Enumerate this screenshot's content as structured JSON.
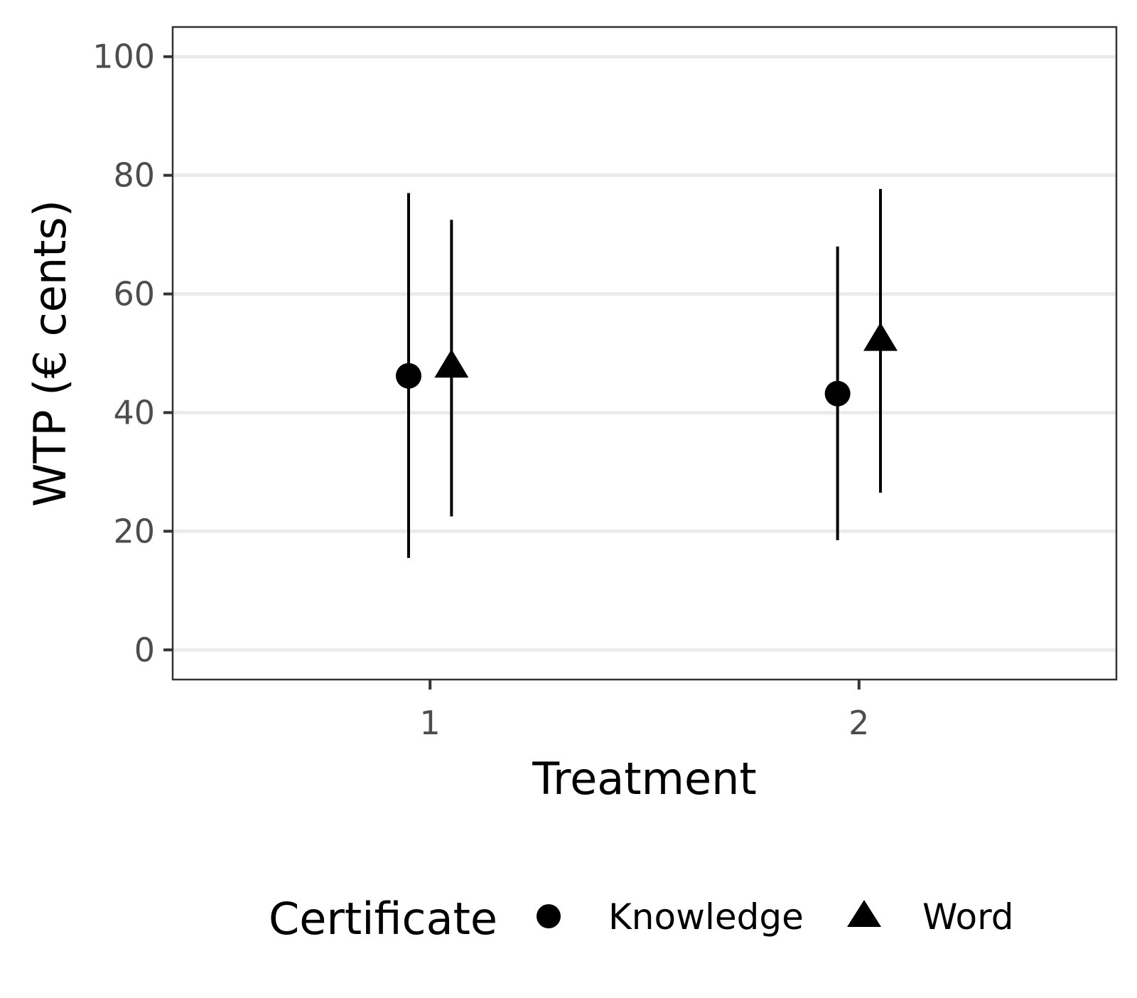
{
  "chart_data": {
    "type": "scatter",
    "title": "",
    "xlabel": "Treatment",
    "ylabel": "WTP (€ cents)",
    "categories": [
      "1",
      "2"
    ],
    "xlim": [
      0.4,
      2.6
    ],
    "ylim": [
      -5,
      105
    ],
    "yticks": [
      0,
      20,
      40,
      60,
      80,
      100
    ],
    "y_tick_labels": [
      "0",
      "20",
      "40",
      "60",
      "80",
      "100"
    ],
    "grid": "horizontal major lines only",
    "legend": {
      "title": "Certificate",
      "placement": "bottom",
      "entries": [
        {
          "label": "Knowledge",
          "shape": "circle"
        },
        {
          "label": "Word",
          "shape": "triangle"
        }
      ]
    },
    "series": [
      {
        "name": "Knowledge",
        "shape": "circle",
        "points": [
          {
            "x": "1",
            "y": 46.2,
            "lower": 15.5,
            "upper": 77.0
          },
          {
            "x": "2",
            "y": 43.2,
            "lower": 18.5,
            "upper": 68.0
          }
        ]
      },
      {
        "name": "Word",
        "shape": "triangle",
        "points": [
          {
            "x": "1",
            "y": 47.5,
            "lower": 22.5,
            "upper": 72.5
          },
          {
            "x": "2",
            "y": 52.0,
            "lower": 26.5,
            "upper": 77.7
          }
        ]
      }
    ],
    "colors": {
      "marks": "#000000",
      "panel_border": "#333333",
      "grid": "#ebebeb",
      "tick_text": "#4d4d4d",
      "tick_marks": "#333333"
    }
  }
}
